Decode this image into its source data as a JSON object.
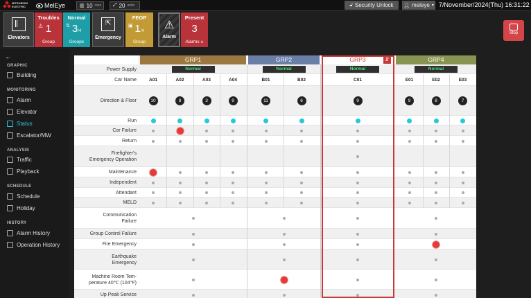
{
  "header": {
    "brand": "MITSUBISHI ELECTRIC",
    "app_name": "MelEye",
    "unit_chip_1": {
      "value": "10",
      "unit": "cars"
    },
    "unit_chip_2": {
      "value": "20",
      "unit": "units"
    },
    "security_unlock": "Security Unlock",
    "user": "meleye",
    "datetime": "7/November/2024(Thu) 16:31:22"
  },
  "summary": {
    "elevators": "Elevators",
    "troubles": {
      "label": "Troubles",
      "count": "1",
      "unit": "Group"
    },
    "normal": {
      "label": "Normal",
      "count": "3",
      "denom": "/4",
      "unit": "Groups"
    },
    "emergency": "Emergency",
    "feop": {
      "label": "FEOP",
      "count": "1",
      "denom": "/4",
      "unit": "Group"
    },
    "alarm": "Alarm",
    "present": {
      "label": "Present",
      "count": "3",
      "unit": "Alarms"
    },
    "stop": "Stop"
  },
  "sidebar": {
    "graphic": "GRAPHIC",
    "building": "Building",
    "monitoring": "MONITORING",
    "alarm": "Alarm",
    "elevator": "Elevator",
    "status": "Status",
    "escalator": "Escalator/MW",
    "analysis": "ANALYSIS",
    "traffic": "Traffic",
    "playback": "Playback",
    "schedule_head": "SCHEDULE",
    "schedule": "Schedule",
    "holiday": "Holiday",
    "history_head": "HISTORY",
    "alarm_history": "Alarm History",
    "operation_history": "Operation History"
  },
  "groups": [
    {
      "name": "GRP1",
      "color": "#9b7741",
      "power": "Normal",
      "cars": [
        "A01",
        "A02",
        "A03",
        "A04"
      ],
      "floors": [
        "10",
        "8",
        "3",
        "9"
      ]
    },
    {
      "name": "GRP2",
      "color": "#6b7fa6",
      "power": "Normal",
      "cars": [
        "B01",
        "B02"
      ],
      "floors": [
        "11",
        "6"
      ]
    },
    {
      "name": "GRP3",
      "color": "#ffffff",
      "power": "Normal",
      "cars": [
        "C01"
      ],
      "floors": [
        "9"
      ]
    },
    {
      "name": "GRP4",
      "color": "#889452",
      "power": "Normal",
      "cars": [
        "E01",
        "E02",
        "E03"
      ],
      "floors": [
        "9",
        "8",
        "7"
      ]
    }
  ],
  "rows": {
    "power": "Power Supply",
    "car_name": "Car Name",
    "direction": "Direction & Floor",
    "run": "Run",
    "car_failure": "Car Failure",
    "return": "Return",
    "firefighter_1": "Firefighter's",
    "firefighter_2": "Emergency Operation",
    "maintenance": "Maintenance",
    "independent": "Independent",
    "attendant": "Attendant",
    "meld": "MELD",
    "comm_1": "Communication",
    "comm_2": "Failure",
    "group_control": "Group Control Failure",
    "fire": "Fire Emergency",
    "earthquake_1": "Earthquake",
    "earthquake_2": "Emergency",
    "machine_1": "Machine Room Tem-",
    "machine_2": "perature 40℃ (104°F)",
    "upeak": "Up Peak Service"
  },
  "colors": {
    "cyan": "#23c9d9",
    "red": "#e23b3b",
    "active_nav": "#2ec6d6"
  }
}
